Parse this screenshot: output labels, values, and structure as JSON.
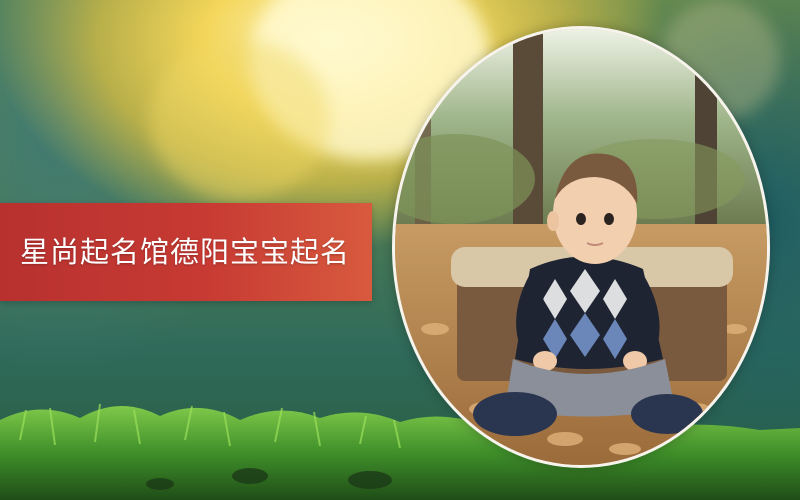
{
  "banner": {
    "title": "星尚起名馆德阳宝宝起名"
  },
  "colors": {
    "banner_red": "#c73a33",
    "banner_text": "#ffffff",
    "oval_border": "#f7f4ee",
    "grass_green": "#3f8f2a",
    "sun_glow": "#f3d65a"
  },
  "photo": {
    "subject": "baby-sitting-in-autumn-leaves"
  }
}
